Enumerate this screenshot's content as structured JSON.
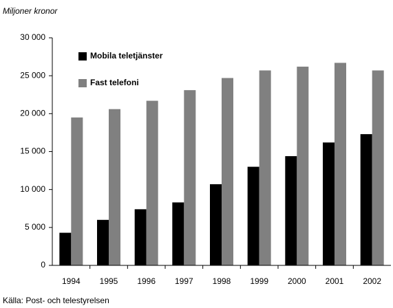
{
  "chart_data": {
    "type": "bar",
    "ylabel": "Miljoner kronor",
    "source": "Källa: Post- och telestyrelsen",
    "categories": [
      "1994",
      "1995",
      "1996",
      "1997",
      "1998",
      "1999",
      "2000",
      "2001",
      "2002"
    ],
    "series": [
      {
        "name": "Mobila teletjänster",
        "color": "#000000",
        "values": [
          4300,
          6000,
          7400,
          8300,
          10700,
          13000,
          14400,
          16200,
          17300
        ]
      },
      {
        "name": "Fast telefoni",
        "color": "#808080",
        "values": [
          19500,
          20600,
          21700,
          23100,
          24700,
          25700,
          26200,
          26700,
          25700
        ]
      }
    ],
    "ylim": [
      0,
      30000
    ],
    "yticks": [
      0,
      {
        "value": 5000,
        "label": "5 000"
      },
      {
        "value": 10000,
        "label": "10 000"
      },
      {
        "value": 15000,
        "label": "15 000"
      },
      {
        "value": 20000,
        "label": "20 000"
      },
      {
        "value": 25000,
        "label": "25 000"
      },
      {
        "value": 30000,
        "label": "30 000"
      }
    ],
    "legend": "upper-left",
    "grid": false
  }
}
